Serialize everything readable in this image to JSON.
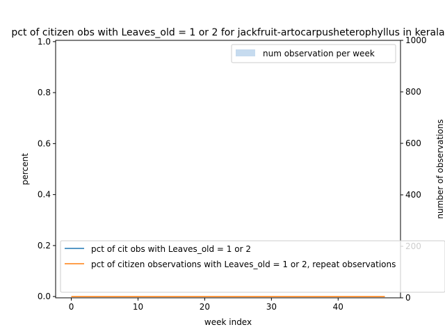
{
  "chart_data": {
    "type": "line",
    "title": "pct of citizen obs with Leaves_old = 1 or 2 for jackfruit-artocarpusheterophyllus in kerala",
    "xlabel": "week index",
    "ylabel_left": "percent",
    "ylabel_right": "number of observations",
    "xlim": [
      -2.35,
      49.35
    ],
    "ylim_left": [
      -0.005,
      1.005
    ],
    "ylim_right": [
      0,
      1000
    ],
    "x_ticks": [
      0,
      10,
      20,
      30,
      40
    ],
    "y_ticks_left": [
      0.0,
      0.2,
      0.4,
      0.6,
      0.8,
      1.0
    ],
    "y_ticks_right": [
      0,
      200,
      400,
      600,
      800,
      1000
    ],
    "x_tick_labels": [
      "0",
      "10",
      "20",
      "30",
      "40"
    ],
    "y_tick_labels_left": [
      "0.0",
      "0.2",
      "0.4",
      "0.6",
      "0.8",
      "1.0"
    ],
    "y_tick_labels_right": [
      "0",
      "200",
      "400",
      "600",
      "800",
      "1000"
    ],
    "x": [
      0,
      47
    ],
    "series": [
      {
        "name": "pct of cit obs with Leaves_old = 1 or 2",
        "color": "#1f77b4",
        "values": [
          0,
          0
        ]
      },
      {
        "name": "pct of citizen observations with Leaves_old = 1 or 2, repeat observations",
        "color": "#ff7f0e",
        "values": [
          0,
          0
        ]
      }
    ],
    "bar_series": {
      "name": "num observation per week",
      "color": "#c6dbef",
      "values": []
    },
    "legend_upper": "top-right",
    "legend_lower": "bottom-left",
    "grid": false
  }
}
